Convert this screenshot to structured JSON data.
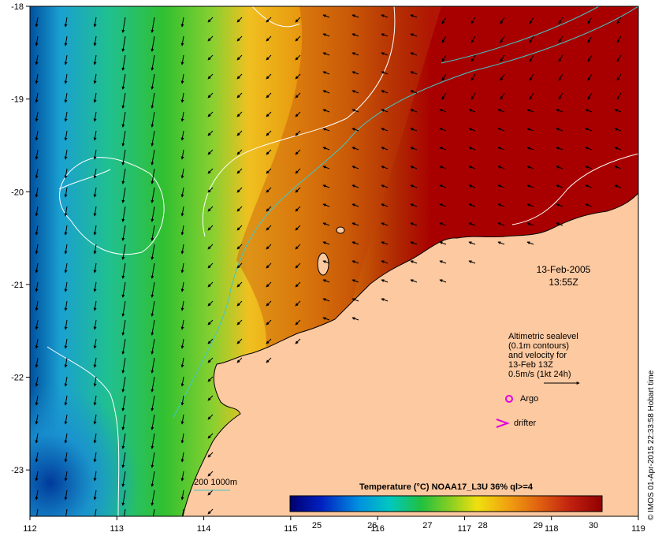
{
  "map": {
    "title": "Temperature (°C) NOAA17_L3U 36% ql>=4",
    "date": "13-Feb-2005",
    "time": "13:55Z",
    "credit": "© IMOS 01-Apr-2015 22:33:58 Hobart time",
    "x_ticks": [
      "112",
      "113",
      "114",
      "115",
      "116",
      "117",
      "118",
      "119"
    ],
    "y_ticks": [
      "-18",
      "-19",
      "-20",
      "-21",
      "-22",
      "-23"
    ],
    "colorbar_ticks": [
      "25",
      "26",
      "27",
      "28",
      "29",
      "30"
    ],
    "legend_lines": [
      "Altimetric sealevel",
      "(0.1m contours)",
      "and velocity for",
      "13-Feb 13Z",
      "0.5m/s (1kt 24h)"
    ],
    "argo_label": "Argo",
    "drifter_label": "drifter",
    "isobath_label": "200  1000m",
    "colors": {
      "land": "#fdc9a0",
      "hot": "#a80000",
      "isobath": "#40c8c8",
      "argo": "#e000e0"
    }
  }
}
